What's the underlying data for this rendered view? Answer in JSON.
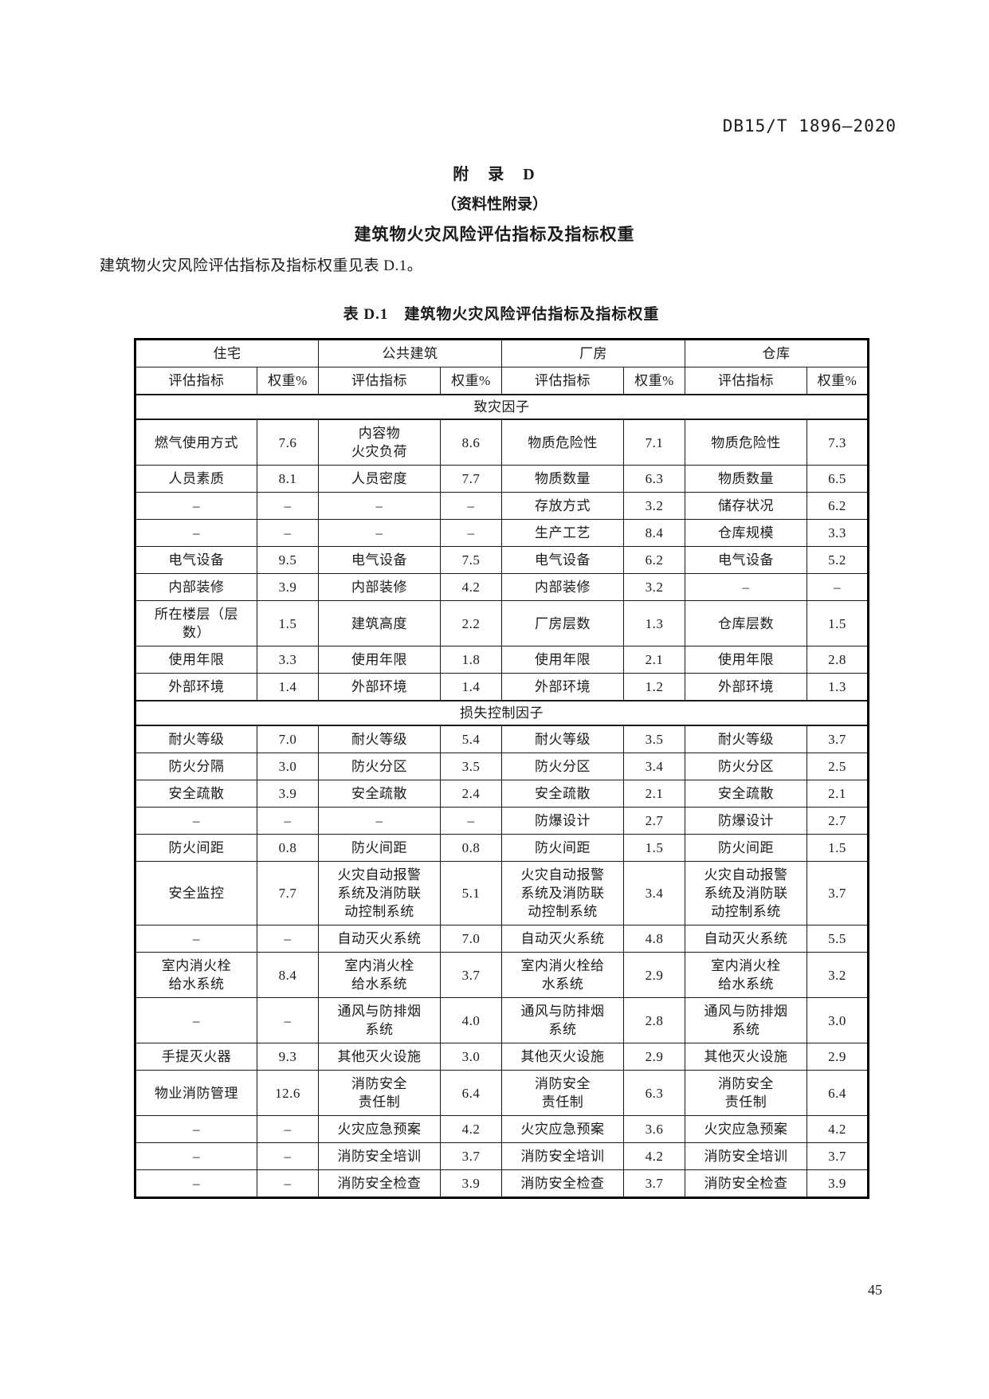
{
  "page": {
    "doc_number": "DB15/T 1896—2020",
    "page_number": "45"
  },
  "appendix": {
    "label": "附　录　D",
    "subtitle": "（资料性附录）",
    "title": "建筑物火灾风险评估指标及指标权重"
  },
  "body_text": "建筑物火灾风险评估指标及指标权重见表 D.1。",
  "table": {
    "caption": "表 D.1　建筑物火灾风险评估指标及指标权重",
    "column_groups": [
      "住宅",
      "公共建筑",
      "厂房",
      "仓库"
    ],
    "subheaders": {
      "indicator": "评估指标",
      "weight": "权重%"
    },
    "sections": [
      {
        "title": "致灾因子",
        "rows": [
          [
            {
              "i": "燃气使用方式",
              "w": "7.6"
            },
            {
              "i": "内容物\n火灾负荷",
              "w": "8.6"
            },
            {
              "i": "物质危险性",
              "w": "7.1"
            },
            {
              "i": "物质危险性",
              "w": "7.3"
            }
          ],
          [
            {
              "i": "人员素质",
              "w": "8.1"
            },
            {
              "i": "人员密度",
              "w": "7.7"
            },
            {
              "i": "物质数量",
              "w": "6.3"
            },
            {
              "i": "物质数量",
              "w": "6.5"
            }
          ],
          [
            {
              "i": "–",
              "w": "–"
            },
            {
              "i": "–",
              "w": "–"
            },
            {
              "i": "存放方式",
              "w": "3.2"
            },
            {
              "i": "储存状况",
              "w": "6.2"
            }
          ],
          [
            {
              "i": "–",
              "w": "–"
            },
            {
              "i": "–",
              "w": "–"
            },
            {
              "i": "生产工艺",
              "w": "8.4"
            },
            {
              "i": "仓库规模",
              "w": "3.3"
            }
          ],
          [
            {
              "i": "电气设备",
              "w": "9.5"
            },
            {
              "i": "电气设备",
              "w": "7.5"
            },
            {
              "i": "电气设备",
              "w": "6.2"
            },
            {
              "i": "电气设备",
              "w": "5.2"
            }
          ],
          [
            {
              "i": "内部装修",
              "w": "3.9"
            },
            {
              "i": "内部装修",
              "w": "4.2"
            },
            {
              "i": "内部装修",
              "w": "3.2"
            },
            {
              "i": "–",
              "w": "–"
            }
          ],
          [
            {
              "i": "所在楼层（层\n数）",
              "w": "1.5"
            },
            {
              "i": "建筑高度",
              "w": "2.2"
            },
            {
              "i": "厂房层数",
              "w": "1.3"
            },
            {
              "i": "仓库层数",
              "w": "1.5"
            }
          ],
          [
            {
              "i": "使用年限",
              "w": "3.3"
            },
            {
              "i": "使用年限",
              "w": "1.8"
            },
            {
              "i": "使用年限",
              "w": "2.1"
            },
            {
              "i": "使用年限",
              "w": "2.8"
            }
          ],
          [
            {
              "i": "外部环境",
              "w": "1.4"
            },
            {
              "i": "外部环境",
              "w": "1.4"
            },
            {
              "i": "外部环境",
              "w": "1.2"
            },
            {
              "i": "外部环境",
              "w": "1.3"
            }
          ]
        ]
      },
      {
        "title": "损失控制因子",
        "rows": [
          [
            {
              "i": "耐火等级",
              "w": "7.0"
            },
            {
              "i": "耐火等级",
              "w": "5.4"
            },
            {
              "i": "耐火等级",
              "w": "3.5"
            },
            {
              "i": "耐火等级",
              "w": "3.7"
            }
          ],
          [
            {
              "i": "防火分隔",
              "w": "3.0"
            },
            {
              "i": "防火分区",
              "w": "3.5"
            },
            {
              "i": "防火分区",
              "w": "3.4"
            },
            {
              "i": "防火分区",
              "w": "2.5"
            }
          ],
          [
            {
              "i": "安全疏散",
              "w": "3.9"
            },
            {
              "i": "安全疏散",
              "w": "2.4"
            },
            {
              "i": "安全疏散",
              "w": "2.1"
            },
            {
              "i": "安全疏散",
              "w": "2.1"
            }
          ],
          [
            {
              "i": "–",
              "w": "–"
            },
            {
              "i": "–",
              "w": "–"
            },
            {
              "i": "防爆设计",
              "w": "2.7"
            },
            {
              "i": "防爆设计",
              "w": "2.7"
            }
          ],
          [
            {
              "i": "防火间距",
              "w": "0.8"
            },
            {
              "i": "防火间距",
              "w": "0.8"
            },
            {
              "i": "防火间距",
              "w": "1.5"
            },
            {
              "i": "防火间距",
              "w": "1.5"
            }
          ],
          [
            {
              "i": "安全监控",
              "w": "7.7"
            },
            {
              "i": "火灾自动报警\n系统及消防联\n动控制系统",
              "w": "5.1"
            },
            {
              "i": "火灾自动报警\n系统及消防联\n动控制系统",
              "w": "3.4"
            },
            {
              "i": "火灾自动报警\n系统及消防联\n动控制系统",
              "w": "3.7"
            }
          ],
          [
            {
              "i": "–",
              "w": "–"
            },
            {
              "i": "自动灭火系统",
              "w": "7.0"
            },
            {
              "i": "自动灭火系统",
              "w": "4.8"
            },
            {
              "i": "自动灭火系统",
              "w": "5.5"
            }
          ],
          [
            {
              "i": "室内消火栓\n给水系统",
              "w": "8.4"
            },
            {
              "i": "室内消火栓\n给水系统",
              "w": "3.7"
            },
            {
              "i": "室内消火栓给\n水系统",
              "w": "2.9"
            },
            {
              "i": "室内消火栓\n给水系统",
              "w": "3.2"
            }
          ],
          [
            {
              "i": "–",
              "w": "–"
            },
            {
              "i": "通风与防排烟\n系统",
              "w": "4.0"
            },
            {
              "i": "通风与防排烟\n系统",
              "w": "2.8"
            },
            {
              "i": "通风与防排烟\n系统",
              "w": "3.0"
            }
          ],
          [
            {
              "i": "手提灭火器",
              "w": "9.3"
            },
            {
              "i": "其他灭火设施",
              "w": "3.0"
            },
            {
              "i": "其他灭火设施",
              "w": "2.9"
            },
            {
              "i": "其他灭火设施",
              "w": "2.9"
            }
          ],
          [
            {
              "i": "物业消防管理",
              "w": "12.6"
            },
            {
              "i": "消防安全\n责任制",
              "w": "6.4"
            },
            {
              "i": "消防安全\n责任制",
              "w": "6.3"
            },
            {
              "i": "消防安全\n责任制",
              "w": "6.4"
            }
          ],
          [
            {
              "i": "–",
              "w": "–"
            },
            {
              "i": "火灾应急预案",
              "w": "4.2"
            },
            {
              "i": "火灾应急预案",
              "w": "3.6"
            },
            {
              "i": "火灾应急预案",
              "w": "4.2"
            }
          ],
          [
            {
              "i": "–",
              "w": "–"
            },
            {
              "i": "消防安全培训",
              "w": "3.7"
            },
            {
              "i": "消防安全培训",
              "w": "4.2"
            },
            {
              "i": "消防安全培训",
              "w": "3.7"
            }
          ],
          [
            {
              "i": "–",
              "w": "–"
            },
            {
              "i": "消防安全检查",
              "w": "3.9"
            },
            {
              "i": "消防安全检查",
              "w": "3.7"
            },
            {
              "i": "消防安全检查",
              "w": "3.9"
            }
          ]
        ]
      }
    ]
  }
}
